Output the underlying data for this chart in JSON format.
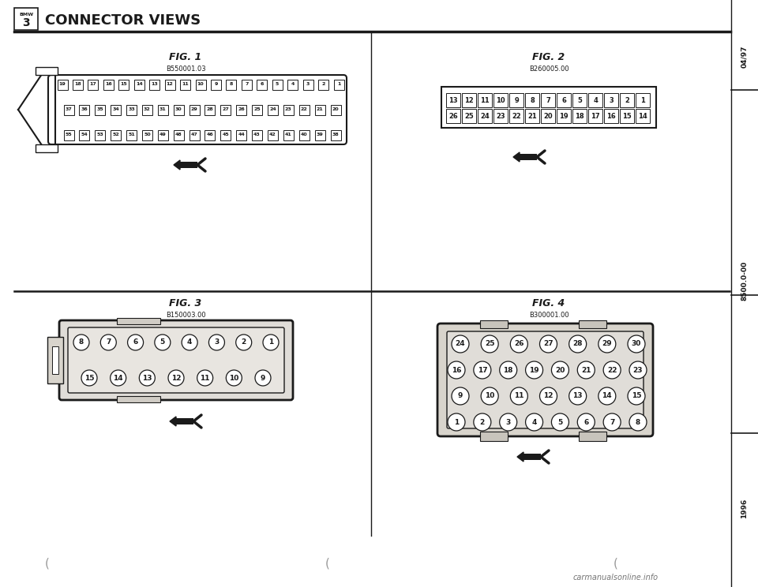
{
  "title": "CONNECTOR VIEWS",
  "bmw_model": "3",
  "date_code": "04/97",
  "part_number": "8500.0-00",
  "year": "1996",
  "fig1_label": "FIG. 1",
  "fig1_code": "B550001.03",
  "fig2_label": "FIG. 2",
  "fig2_code": "B260005.00",
  "fig3_label": "FIG. 3",
  "fig3_code": "B150003.00",
  "fig4_label": "FIG. 4",
  "fig4_code": "B300001.00",
  "bg_color": "#ffffff",
  "line_color": "#1a1a1a",
  "fig1_row1": [
    19,
    18,
    17,
    16,
    15,
    14,
    13,
    12,
    11,
    10,
    9,
    8,
    7,
    6,
    5,
    4,
    3,
    2,
    1
  ],
  "fig1_row2": [
    37,
    36,
    35,
    34,
    33,
    32,
    31,
    30,
    29,
    28,
    27,
    26,
    25,
    24,
    23,
    22,
    21,
    20
  ],
  "fig1_row3": [
    55,
    54,
    53,
    52,
    51,
    50,
    49,
    48,
    47,
    46,
    45,
    44,
    43,
    42,
    41,
    40,
    39,
    38
  ],
  "fig2_row1": [
    13,
    12,
    11,
    10,
    9,
    8,
    7,
    6,
    5,
    4,
    3,
    2,
    1
  ],
  "fig2_row2": [
    26,
    25,
    24,
    23,
    22,
    21,
    20,
    19,
    18,
    17,
    16,
    15,
    14
  ],
  "fig3_row1": [
    8,
    7,
    6,
    5,
    4,
    3,
    2,
    1
  ],
  "fig3_row2": [
    15,
    14,
    13,
    12,
    11,
    10,
    9
  ],
  "fig4_row1": [
    24,
    25,
    26,
    27,
    28,
    29,
    30
  ],
  "fig4_row2": [
    16,
    17,
    18,
    19,
    20,
    21,
    22,
    23
  ],
  "fig4_row3": [
    9,
    10,
    11,
    12,
    13,
    14,
    15
  ],
  "fig4_row4": [
    1,
    2,
    3,
    4,
    5,
    6,
    7,
    8
  ],
  "watermark": "carmanualsonline.info"
}
